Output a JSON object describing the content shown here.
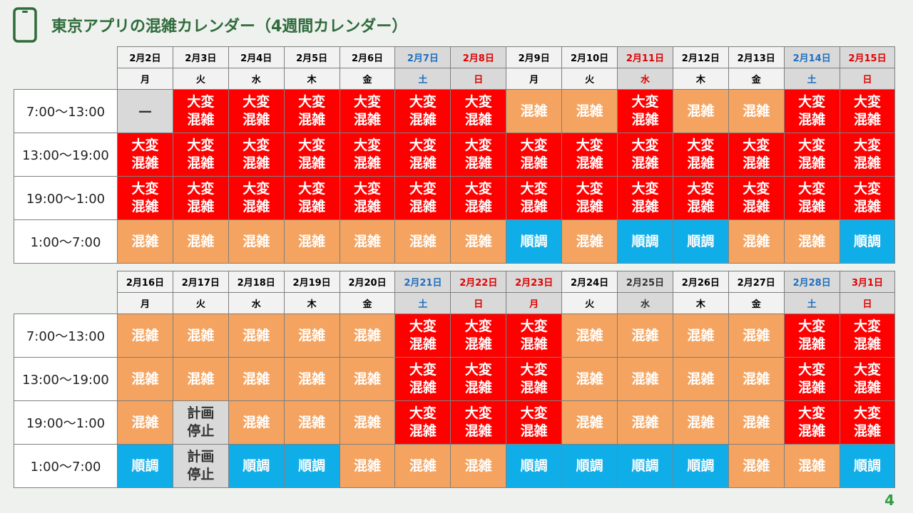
{
  "title": "東京アプリの混雑カレンダー（4週間カレンダー）",
  "page_number": "4",
  "slots": [
    "7:00〜13:00",
    "13:00〜19:00",
    "19:00〜1:00",
    "1:00〜7:00"
  ],
  "status_labels": {
    "very": "大変\n混雑",
    "busy": "混雑",
    "smooth": "順調",
    "stop": "計画\n停止",
    "none": "—"
  },
  "weeks": [
    {
      "days": [
        {
          "date": "2月2日",
          "weekday": "月",
          "type": "weekday",
          "status": [
            "none",
            "very",
            "very",
            "busy"
          ]
        },
        {
          "date": "2月3日",
          "weekday": "火",
          "type": "weekday",
          "status": [
            "very",
            "very",
            "very",
            "busy"
          ]
        },
        {
          "date": "2月4日",
          "weekday": "水",
          "type": "weekday",
          "status": [
            "very",
            "very",
            "very",
            "busy"
          ]
        },
        {
          "date": "2月5日",
          "weekday": "木",
          "type": "weekday",
          "status": [
            "very",
            "very",
            "very",
            "busy"
          ]
        },
        {
          "date": "2月6日",
          "weekday": "金",
          "type": "weekday",
          "status": [
            "very",
            "very",
            "very",
            "busy"
          ]
        },
        {
          "date": "2月7日",
          "weekday": "土",
          "type": "sat",
          "status": [
            "very",
            "very",
            "very",
            "busy"
          ]
        },
        {
          "date": "2月8日",
          "weekday": "日",
          "type": "hol",
          "status": [
            "very",
            "very",
            "very",
            "busy"
          ]
        },
        {
          "date": "2月9日",
          "weekday": "月",
          "type": "weekday",
          "status": [
            "busy",
            "very",
            "very",
            "smooth"
          ]
        },
        {
          "date": "2月10日",
          "weekday": "火",
          "type": "weekday",
          "status": [
            "busy",
            "very",
            "very",
            "busy"
          ]
        },
        {
          "date": "2月11日",
          "weekday": "水",
          "type": "hol",
          "status": [
            "very",
            "very",
            "very",
            "smooth"
          ]
        },
        {
          "date": "2月12日",
          "weekday": "木",
          "type": "weekday",
          "status": [
            "busy",
            "very",
            "very",
            "smooth"
          ]
        },
        {
          "date": "2月13日",
          "weekday": "金",
          "type": "weekday",
          "status": [
            "busy",
            "very",
            "very",
            "busy"
          ]
        },
        {
          "date": "2月14日",
          "weekday": "土",
          "type": "sat",
          "status": [
            "very",
            "very",
            "very",
            "busy"
          ]
        },
        {
          "date": "2月15日",
          "weekday": "日",
          "type": "hol",
          "status": [
            "very",
            "very",
            "very",
            "smooth"
          ]
        }
      ]
    },
    {
      "days": [
        {
          "date": "2月16日",
          "weekday": "月",
          "type": "weekday",
          "status": [
            "busy",
            "busy",
            "busy",
            "smooth"
          ]
        },
        {
          "date": "2月17日",
          "weekday": "火",
          "type": "weekday",
          "status": [
            "busy",
            "busy",
            "stop",
            "stop"
          ]
        },
        {
          "date": "2月18日",
          "weekday": "水",
          "type": "weekday",
          "status": [
            "busy",
            "busy",
            "busy",
            "smooth"
          ]
        },
        {
          "date": "2月19日",
          "weekday": "木",
          "type": "weekday",
          "status": [
            "busy",
            "busy",
            "busy",
            "smooth"
          ]
        },
        {
          "date": "2月20日",
          "weekday": "金",
          "type": "weekday",
          "status": [
            "busy",
            "busy",
            "busy",
            "busy"
          ]
        },
        {
          "date": "2月21日",
          "weekday": "土",
          "type": "sat",
          "status": [
            "very",
            "very",
            "very",
            "busy"
          ]
        },
        {
          "date": "2月22日",
          "weekday": "日",
          "type": "hol",
          "status": [
            "very",
            "very",
            "very",
            "busy"
          ]
        },
        {
          "date": "2月23日",
          "weekday": "月",
          "type": "hol",
          "status": [
            "very",
            "very",
            "very",
            "smooth"
          ]
        },
        {
          "date": "2月24日",
          "weekday": "火",
          "type": "weekday",
          "status": [
            "busy",
            "busy",
            "busy",
            "smooth"
          ]
        },
        {
          "date": "2月25日",
          "weekday": "水",
          "type": "gray",
          "status": [
            "busy",
            "busy",
            "busy",
            "smooth"
          ]
        },
        {
          "date": "2月26日",
          "weekday": "木",
          "type": "weekday",
          "status": [
            "busy",
            "busy",
            "busy",
            "smooth"
          ]
        },
        {
          "date": "2月27日",
          "weekday": "金",
          "type": "weekday",
          "status": [
            "busy",
            "busy",
            "busy",
            "busy"
          ]
        },
        {
          "date": "2月28日",
          "weekday": "土",
          "type": "sat",
          "status": [
            "very",
            "very",
            "very",
            "busy"
          ]
        },
        {
          "date": "3月1日",
          "weekday": "日",
          "type": "hol",
          "status": [
            "very",
            "very",
            "very",
            "smooth"
          ]
        }
      ]
    }
  ]
}
